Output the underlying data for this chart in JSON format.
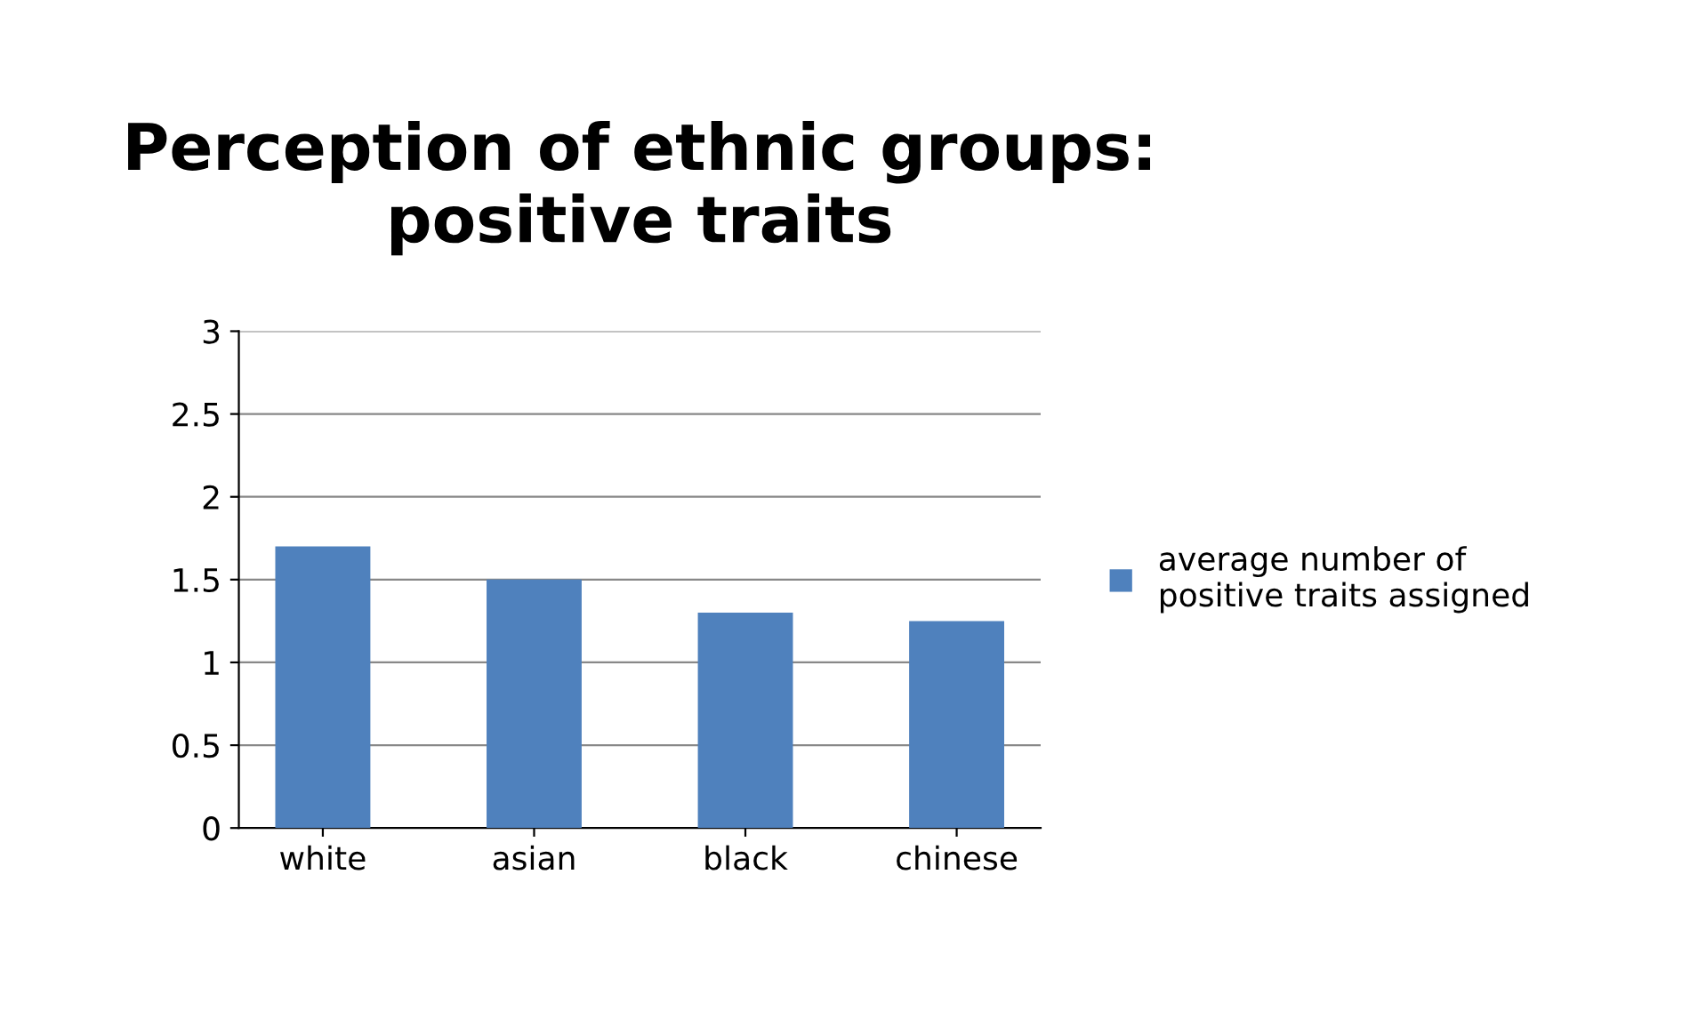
{
  "chart_data": {
    "type": "bar",
    "title": "Perception of ethnic groups: positive traits",
    "categories": [
      "white",
      "asian",
      "black",
      "chinese"
    ],
    "series": [
      {
        "name": "average number of\npositive traits assigned",
        "color": "#4f81bd",
        "values": [
          1.7,
          1.5,
          1.3,
          1.25
        ]
      }
    ],
    "ylim": [
      0,
      3
    ],
    "yticks": [
      0,
      0.5,
      1,
      1.5,
      2,
      2.5,
      3
    ],
    "grid": "y",
    "legend": "right"
  }
}
